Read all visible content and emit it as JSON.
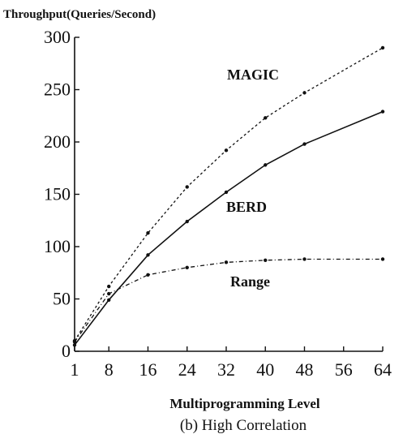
{
  "chart_data": {
    "type": "line",
    "ylabel": "Throughput(Queries/Second)",
    "xlabel": "Multiprogramming Level",
    "caption": "(b)  High Correlation",
    "ylim": [
      0,
      300
    ],
    "xlim": [
      1,
      64
    ],
    "x_ticks": [
      1,
      8,
      16,
      24,
      32,
      40,
      48,
      56,
      64
    ],
    "y_ticks": [
      0,
      50,
      100,
      150,
      200,
      250,
      300
    ],
    "grid": false,
    "series": [
      {
        "name": "MAGIC",
        "style": "dashed",
        "x": [
          1,
          8,
          16,
          24,
          32,
          40,
          48,
          64
        ],
        "y": [
          10,
          62,
          113,
          157,
          192,
          223,
          247,
          290
        ]
      },
      {
        "name": "BERD",
        "style": "solid",
        "x": [
          1,
          8,
          16,
          24,
          32,
          40,
          48,
          64
        ],
        "y": [
          6,
          49,
          92,
          124,
          152,
          178,
          198,
          229
        ]
      },
      {
        "name": "Range",
        "style": "dash-dot",
        "x": [
          1,
          8,
          16,
          24,
          32,
          40,
          48,
          64
        ],
        "y": [
          9,
          55,
          73,
          80,
          85,
          87,
          88,
          88
        ]
      }
    ]
  }
}
